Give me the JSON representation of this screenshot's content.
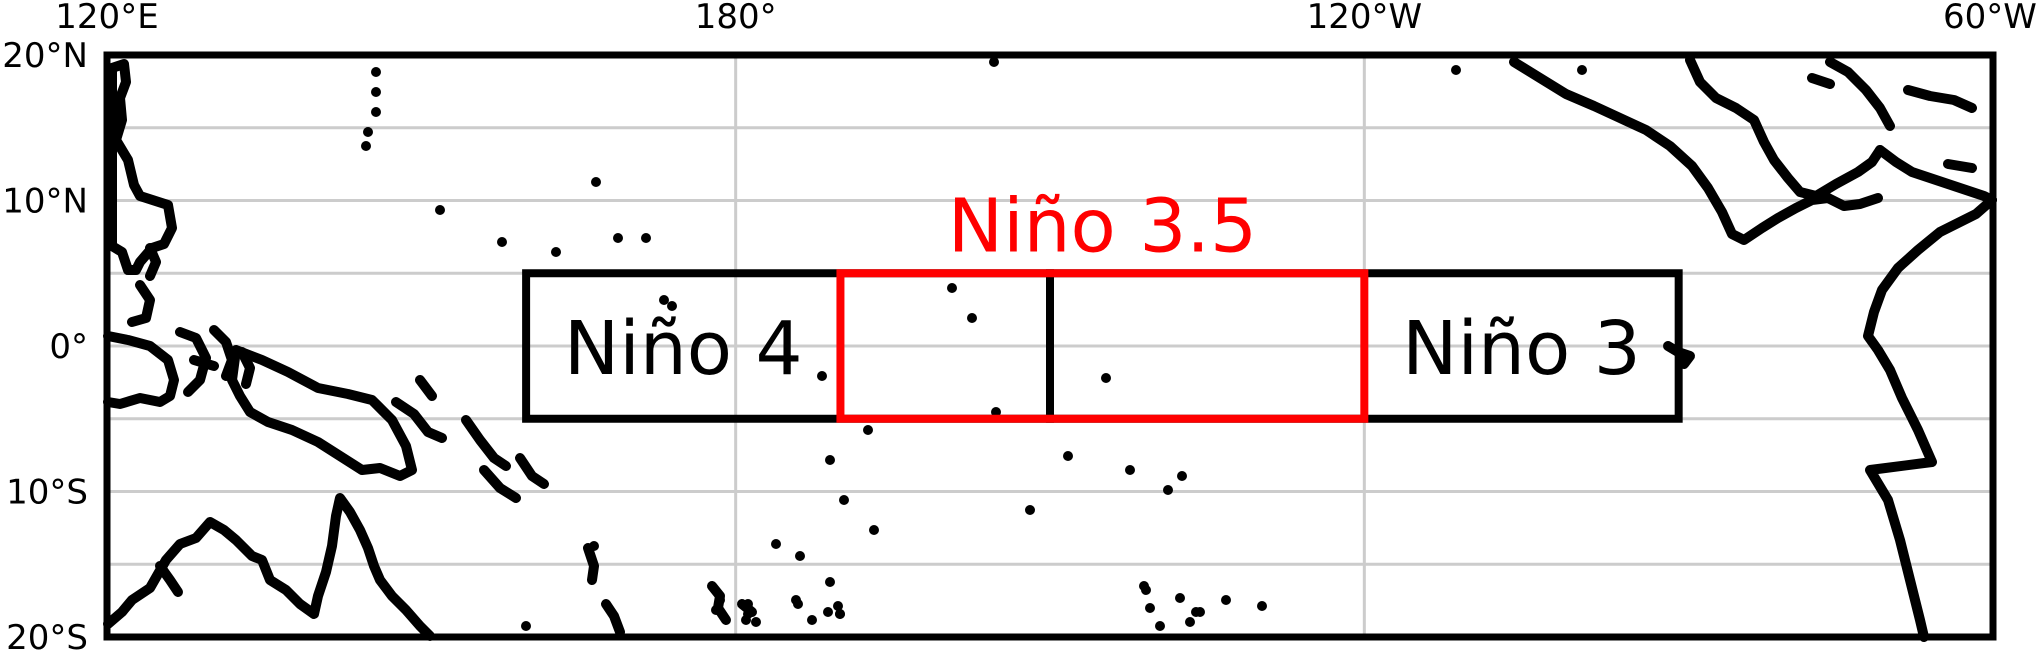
{
  "map": {
    "projection": "equirectangular",
    "lon_range_deg_east": [
      120,
      300
    ],
    "lat_range_deg": [
      -20,
      20
    ],
    "gridlines": true,
    "gridline_color": "#cccccc",
    "coastline_color": "#000000",
    "lon_ticks": [
      {
        "value": 120,
        "label": "120°E"
      },
      {
        "value": 180,
        "label": "180°"
      },
      {
        "value": 240,
        "label": "120°W"
      },
      {
        "value": 300,
        "label": "60°W"
      }
    ],
    "lat_ticks": [
      {
        "value": 20,
        "label": "20°N"
      },
      {
        "value": 10,
        "label": "10°N"
      },
      {
        "value": 0,
        "label": "0°"
      },
      {
        "value": -10,
        "label": "10°S"
      },
      {
        "value": -20,
        "label": "20°S"
      }
    ]
  },
  "regions": [
    {
      "id": "nino4",
      "label": "Niño 4",
      "lon": [
        160,
        210
      ],
      "lat": [
        -5,
        5
      ],
      "color": "#000000"
    },
    {
      "id": "nino3",
      "label": "Niño 3",
      "lon": [
        210,
        270
      ],
      "lat": [
        -5,
        5
      ],
      "color": "#000000"
    },
    {
      "id": "nino34",
      "label": "Niño 3.5",
      "lon": [
        190,
        240
      ],
      "lat": [
        -5,
        5
      ],
      "color": "#ff0000"
    }
  ]
}
